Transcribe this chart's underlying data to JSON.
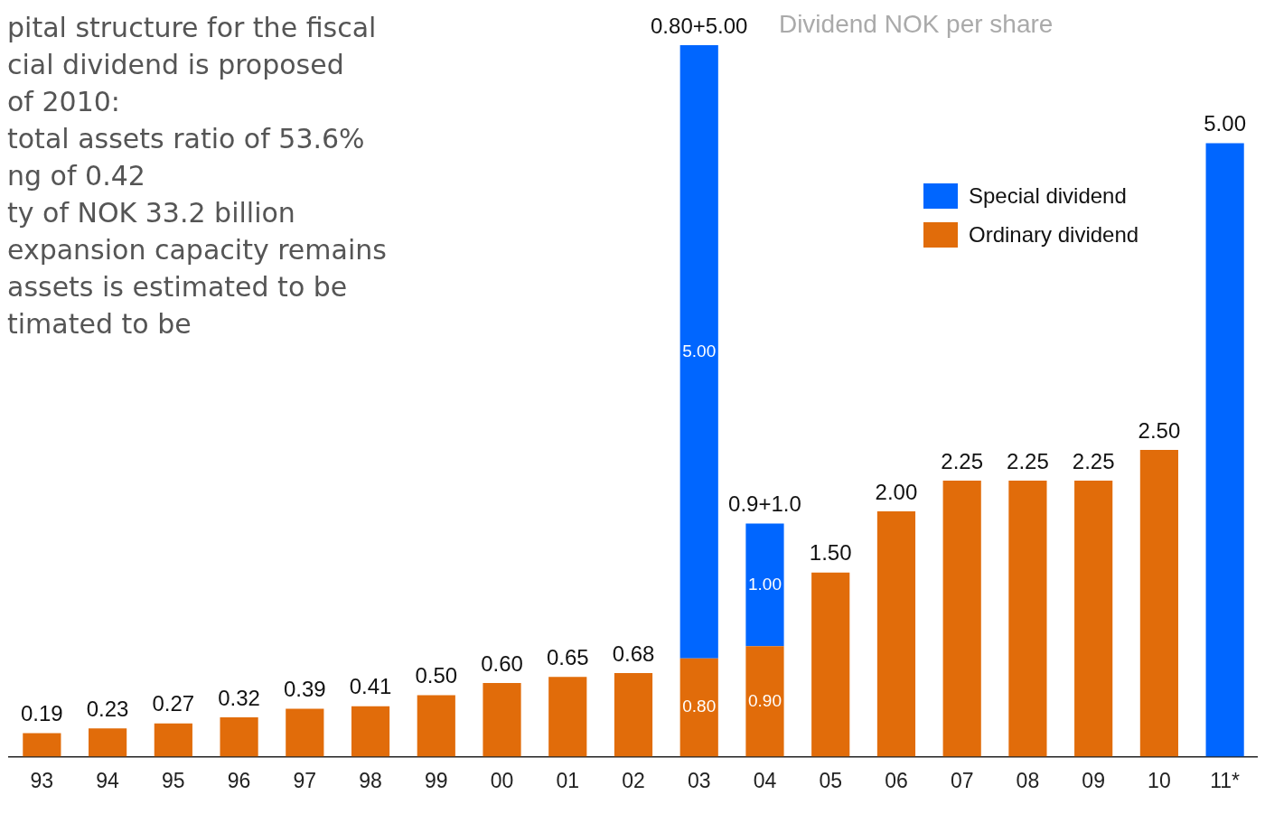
{
  "chart_data": {
    "type": "bar",
    "title": "Dividend NOK per share",
    "stacked": true,
    "legend": "top right",
    "categories": [
      "93",
      "94",
      "95",
      "96",
      "97",
      "98",
      "99",
      "00",
      "01",
      "02",
      "03",
      "04",
      "05",
      "06",
      "07",
      "08",
      "09",
      "10",
      "11*"
    ],
    "series": [
      {
        "name": "Ordinary dividend",
        "color": "#e16c0a",
        "values": [
          0.19,
          0.23,
          0.27,
          0.32,
          0.39,
          0.41,
          0.5,
          0.6,
          0.65,
          0.68,
          0.8,
          0.9,
          1.5,
          2.0,
          2.25,
          2.25,
          2.25,
          2.5,
          null
        ],
        "value_labels": [
          "0.19",
          "0.23",
          "0.27",
          "0.32",
          "0.39",
          "0.41",
          "0.50",
          "0.60",
          "0.65",
          "0.68",
          "0.80",
          "0.90",
          "1.50",
          "2.00",
          "2.25",
          "2.25",
          "2.25",
          "2.50",
          null
        ]
      },
      {
        "name": "Special dividend",
        "color": "#0066ff",
        "values": [
          null,
          null,
          null,
          null,
          null,
          null,
          null,
          null,
          null,
          null,
          5.0,
          1.0,
          null,
          null,
          null,
          null,
          null,
          null,
          5.0
        ],
        "value_labels": [
          null,
          null,
          null,
          null,
          null,
          null,
          null,
          null,
          null,
          null,
          "5.00",
          "1.00",
          null,
          null,
          null,
          null,
          null,
          null,
          "5.00"
        ]
      }
    ],
    "totals": [
      null,
      null,
      null,
      null,
      null,
      null,
      null,
      null,
      null,
      null,
      "0.80+5.00",
      "0.9+1.0",
      null,
      null,
      null,
      null,
      null,
      null,
      null
    ],
    "annotations": [
      "pital structure for the fiscal",
      "cial dividend is proposed",
      "of 2010:",
      "total assets ratio of 53.6%",
      "ng of 0.42",
      "ty of NOK 33.2 billion",
      "expansion capacity remains",
      "assets is estimated to be",
      "timated to be"
    ]
  }
}
